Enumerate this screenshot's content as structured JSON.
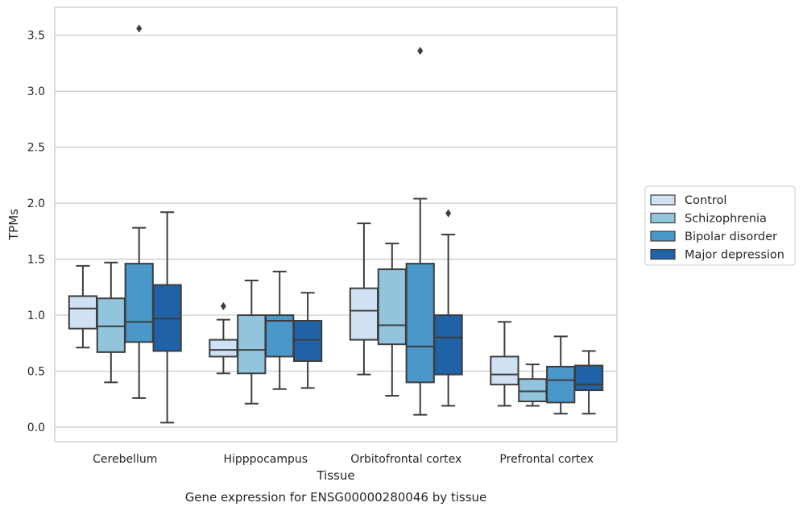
{
  "chart_data": {
    "type": "box",
    "categories": [
      "Cerebellum",
      "Hipppocampus",
      "Orbitofrontal cortex",
      "Prefrontal cortex"
    ],
    "xlabel": "Tissue",
    "ylabel": "TPMs",
    "ylim": [
      -0.13,
      3.75
    ],
    "yticks": [
      "0.0",
      "0.5",
      "1.0",
      "1.5",
      "2.0",
      "2.5",
      "3.0",
      "3.5"
    ],
    "grid": "horizontal",
    "legend_position": "right",
    "caption": "Gene expression for ENSG00000280046 by tissue",
    "series": [
      {
        "name": "Control",
        "color": "#cfe1f2",
        "boxes": [
          {
            "whislo": 0.71,
            "q1": 0.88,
            "med": 1.06,
            "q3": 1.17,
            "whishi": 1.44,
            "fliers": []
          },
          {
            "whislo": 0.48,
            "q1": 0.63,
            "med": 0.69,
            "q3": 0.78,
            "whishi": 0.96,
            "fliers": [
              1.08
            ]
          },
          {
            "whislo": 0.47,
            "q1": 0.78,
            "med": 1.04,
            "q3": 1.24,
            "whishi": 1.82,
            "fliers": []
          },
          {
            "whislo": 0.19,
            "q1": 0.38,
            "med": 0.47,
            "q3": 0.63,
            "whishi": 0.94,
            "fliers": []
          }
        ]
      },
      {
        "name": "Schizophrenia",
        "color": "#93c4de",
        "boxes": [
          {
            "whislo": 0.4,
            "q1": 0.67,
            "med": 0.9,
            "q3": 1.15,
            "whishi": 1.47,
            "fliers": []
          },
          {
            "whislo": 0.21,
            "q1": 0.48,
            "med": 0.69,
            "q3": 1.0,
            "whishi": 1.31,
            "fliers": []
          },
          {
            "whislo": 0.28,
            "q1": 0.74,
            "med": 0.91,
            "q3": 1.41,
            "whishi": 1.64,
            "fliers": []
          },
          {
            "whislo": 0.19,
            "q1": 0.23,
            "med": 0.32,
            "q3": 0.43,
            "whishi": 0.56,
            "fliers": []
          }
        ]
      },
      {
        "name": "Bipolar disorder",
        "color": "#4a98c9",
        "boxes": [
          {
            "whislo": 0.26,
            "q1": 0.76,
            "med": 0.94,
            "q3": 1.46,
            "whishi": 1.78,
            "fliers": [
              3.56
            ]
          },
          {
            "whislo": 0.34,
            "q1": 0.63,
            "med": 0.95,
            "q3": 1.0,
            "whishi": 1.39,
            "fliers": []
          },
          {
            "whislo": 0.11,
            "q1": 0.4,
            "med": 0.72,
            "q3": 1.46,
            "whishi": 2.04,
            "fliers": [
              3.36
            ]
          },
          {
            "whislo": 0.12,
            "q1": 0.22,
            "med": 0.42,
            "q3": 0.54,
            "whishi": 0.81,
            "fliers": []
          }
        ]
      },
      {
        "name": "Major depression",
        "color": "#1f62a8",
        "boxes": [
          {
            "whislo": 0.04,
            "q1": 0.68,
            "med": 0.97,
            "q3": 1.27,
            "whishi": 1.92,
            "fliers": []
          },
          {
            "whislo": 0.35,
            "q1": 0.59,
            "med": 0.78,
            "q3": 0.95,
            "whishi": 1.2,
            "fliers": []
          },
          {
            "whislo": 0.19,
            "q1": 0.47,
            "med": 0.8,
            "q3": 1.0,
            "whishi": 1.72,
            "fliers": [
              1.91
            ]
          },
          {
            "whislo": 0.12,
            "q1": 0.33,
            "med": 0.38,
            "q3": 0.55,
            "whishi": 0.68,
            "fliers": []
          }
        ]
      }
    ]
  }
}
